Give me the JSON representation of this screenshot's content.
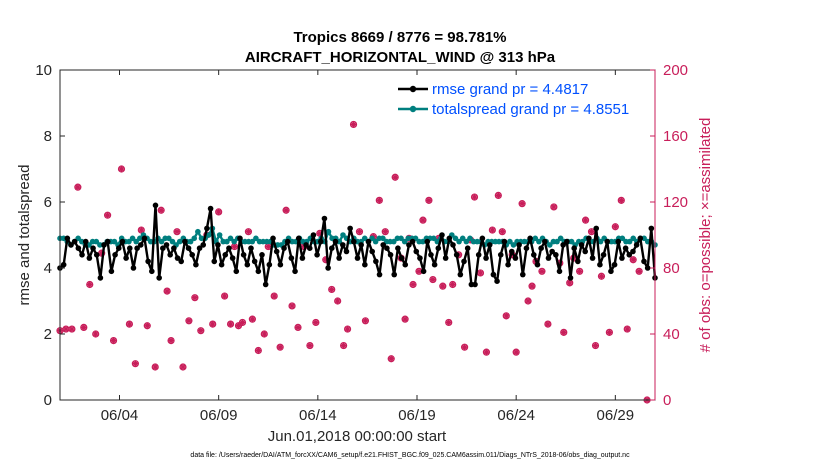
{
  "chart_data": {
    "type": "line",
    "title_line1": "Tropics 8669 / 8776 = 98.781%",
    "title_line2": "AIRCRAFT_HORIZONTAL_WIND @ 313 hPa",
    "xlabel": "Jun.01,2018 00:00:00 start",
    "ylabel_left": "rmse and totalspread",
    "ylabel_right": "# of obs: o=possible; ×=assimilated",
    "footer": "data file: /Users/raeder/DAI/ATM_forcXX/CAM6_setup/f.e21.FHIST_BGC.f09_025.CAM6assim.011/Diags_NTrS_2018-06/obs_diag_output.nc",
    "x_ticks": [
      {
        "day": 4,
        "label": "06/04"
      },
      {
        "day": 9,
        "label": "06/09"
      },
      {
        "day": 14,
        "label": "06/14"
      },
      {
        "day": 19,
        "label": "06/19"
      },
      {
        "day": 24,
        "label": "06/24"
      },
      {
        "day": 29,
        "label": "06/29"
      }
    ],
    "xlim": [
      1.0,
      31.0
    ],
    "ylim_left": [
      0,
      10
    ],
    "ylim_right": [
      0,
      200
    ],
    "yticks_left": [
      "0",
      "2",
      "4",
      "6",
      "8",
      "10"
    ],
    "yticks_right": [
      "0",
      "40",
      "80",
      "120",
      "160",
      "200"
    ],
    "colors": {
      "rmse": "#000000",
      "spread": "#007f7f",
      "obs": "#c81e5a",
      "legend_text": "#0050ff"
    },
    "series": [
      {
        "name": "rmse grand pr = 4.4817",
        "key": "rmse",
        "values": [
          4.0,
          4.1,
          4.9,
          4.7,
          4.8,
          4.6,
          4.4,
          4.8,
          4.3,
          4.6,
          4.4,
          3.7,
          4.7,
          4.8,
          3.9,
          4.4,
          4.6,
          4.8,
          4.3,
          4.6,
          4.0,
          4.6,
          4.7,
          4.9,
          4.2,
          3.9,
          5.9,
          3.7,
          4.6,
          4.7,
          4.4,
          4.6,
          4.3,
          4.2,
          4.8,
          4.6,
          4.4,
          4.1,
          4.6,
          4.7,
          5.2,
          5.8,
          4.2,
          4.7,
          4.1,
          4.4,
          4.6,
          4.3,
          3.9,
          4.9,
          4.4,
          4.1,
          4.6,
          4.2,
          3.9,
          4.4,
          3.5,
          4.1,
          4.9,
          4.5,
          4.1,
          4.6,
          4.8,
          4.3,
          3.9,
          4.9,
          4.3,
          4.7,
          4.6,
          5.0,
          4.4,
          4.8,
          5.5,
          4.0,
          4.6,
          4.8,
          4.3,
          4.7,
          4.5,
          5.2,
          4.8,
          4.3,
          4.7,
          4.1,
          4.8,
          4.5,
          4.2,
          3.8,
          4.7,
          4.6,
          4.4,
          3.8,
          4.6,
          4.3,
          4.1,
          4.7,
          4.8,
          4.5,
          4.3,
          3.9,
          4.8,
          4.4,
          4.1,
          4.6,
          5.0,
          4.3,
          4.9,
          4.7,
          4.4,
          3.8,
          4.2,
          4.6,
          3.5,
          3.5,
          4.4,
          4.9,
          4.3,
          4.7,
          3.8,
          3.6,
          4.4,
          4.8,
          4.1,
          4.5,
          4.3,
          4.7,
          3.8,
          4.6,
          4.9,
          4.4,
          4.1,
          4.6,
          4.8,
          4.3,
          4.5,
          4.4,
          3.9,
          4.7,
          4.8,
          3.7,
          4.6,
          4.2,
          4.7,
          4.5,
          4.9,
          4.3,
          5.2,
          4.1,
          4.4,
          4.8,
          3.9,
          4.1,
          4.8,
          4.3,
          4.6,
          4.4,
          4.5,
          4.7,
          4.9,
          4.2,
          4.0,
          5.2,
          3.7
        ]
      },
      {
        "name": "totalspread grand pr = 4.8551",
        "key": "spread",
        "values": [
          4.9,
          4.9,
          4.8,
          4.7,
          4.8,
          4.9,
          4.8,
          4.7,
          4.7,
          4.8,
          4.8,
          4.7,
          4.7,
          4.8,
          4.8,
          4.8,
          4.7,
          4.9,
          4.8,
          4.8,
          4.9,
          4.8,
          4.9,
          5.0,
          4.9,
          4.8,
          4.8,
          4.9,
          4.8,
          4.9,
          4.9,
          4.8,
          4.7,
          4.8,
          4.9,
          4.8,
          4.8,
          4.9,
          5.1,
          4.9,
          4.9,
          5.0,
          5.2,
          4.8,
          5.0,
          4.8,
          4.8,
          4.9,
          4.8,
          4.9,
          4.8,
          4.8,
          4.8,
          4.8,
          4.9,
          4.8,
          4.8,
          4.8,
          4.8,
          4.7,
          4.7,
          4.7,
          4.8,
          4.9,
          4.8,
          4.8,
          4.9,
          4.8,
          4.8,
          4.9,
          4.8,
          4.8,
          4.9,
          4.8,
          5.1,
          4.9,
          4.9,
          4.8,
          5.0,
          4.9,
          4.8,
          4.9,
          4.8,
          4.8,
          4.9,
          4.8,
          4.9,
          4.8,
          4.9,
          4.9,
          4.8,
          4.8,
          4.8,
          4.9,
          4.9,
          4.8,
          4.9,
          4.9,
          4.9,
          4.8,
          4.8,
          4.9,
          4.9,
          4.9,
          4.8,
          4.9,
          4.8,
          4.8,
          5.0,
          4.9,
          4.8,
          4.9,
          4.8,
          4.9,
          4.8,
          4.8,
          4.8,
          4.7,
          4.8,
          4.8,
          4.8,
          4.8,
          4.8,
          4.7,
          4.8,
          4.7,
          4.8,
          4.8,
          4.8,
          4.8,
          4.8,
          4.9,
          4.8,
          4.9,
          4.8,
          4.7,
          4.8,
          4.8,
          4.9,
          4.8,
          4.8,
          4.8,
          4.7,
          4.8,
          4.8,
          4.9,
          4.8,
          4.8,
          4.9,
          4.8,
          4.9,
          4.8,
          4.8,
          4.8,
          4.9,
          4.9,
          4.8,
          4.8,
          4.9,
          4.8,
          4.9,
          4.9,
          4.8,
          4.8,
          4.7
        ]
      }
    ],
    "obs_count": [
      [
        1.0,
        42
      ],
      [
        1.3,
        43
      ],
      [
        1.6,
        43
      ],
      [
        1.9,
        129
      ],
      [
        2.2,
        44
      ],
      [
        2.5,
        70
      ],
      [
        2.8,
        40
      ],
      [
        3.1,
        89
      ],
      [
        3.4,
        112
      ],
      [
        3.7,
        36
      ],
      [
        4.1,
        140
      ],
      [
        4.5,
        46
      ],
      [
        4.8,
        22
      ],
      [
        5.1,
        103
      ],
      [
        5.4,
        45
      ],
      [
        5.8,
        20
      ],
      [
        6.1,
        115
      ],
      [
        6.4,
        66
      ],
      [
        6.6,
        36
      ],
      [
        6.9,
        102
      ],
      [
        7.2,
        20
      ],
      [
        7.5,
        48
      ],
      [
        7.8,
        62
      ],
      [
        8.1,
        42
      ],
      [
        8.4,
        100
      ],
      [
        8.7,
        46
      ],
      [
        9.0,
        114
      ],
      [
        9.3,
        63
      ],
      [
        9.6,
        46
      ],
      [
        9.8,
        93
      ],
      [
        10.0,
        45
      ],
      [
        10.2,
        47
      ],
      [
        10.5,
        102
      ],
      [
        10.7,
        49
      ],
      [
        11.0,
        30
      ],
      [
        11.3,
        40
      ],
      [
        11.5,
        93
      ],
      [
        11.8,
        63
      ],
      [
        12.1,
        32
      ],
      [
        12.4,
        115
      ],
      [
        12.7,
        57
      ],
      [
        13.0,
        44
      ],
      [
        13.3,
        93
      ],
      [
        13.6,
        33
      ],
      [
        13.9,
        47
      ],
      [
        14.1,
        101
      ],
      [
        14.4,
        85
      ],
      [
        14.7,
        67
      ],
      [
        15.0,
        60
      ],
      [
        15.3,
        33
      ],
      [
        15.5,
        43
      ],
      [
        15.8,
        167
      ],
      [
        16.1,
        102
      ],
      [
        16.4,
        48
      ],
      [
        16.8,
        99
      ],
      [
        17.1,
        121
      ],
      [
        17.4,
        102
      ],
      [
        17.7,
        25
      ],
      [
        17.9,
        135
      ],
      [
        18.2,
        86
      ],
      [
        18.4,
        49
      ],
      [
        18.6,
        98
      ],
      [
        18.8,
        70
      ],
      [
        19.1,
        78
      ],
      [
        19.3,
        109
      ],
      [
        19.6,
        121
      ],
      [
        19.8,
        73
      ],
      [
        20.1,
        98
      ],
      [
        20.3,
        69
      ],
      [
        20.6,
        47
      ],
      [
        20.8,
        70
      ],
      [
        21.1,
        88
      ],
      [
        21.4,
        32
      ],
      [
        21.7,
        97
      ],
      [
        21.9,
        123
      ],
      [
        22.2,
        77
      ],
      [
        22.5,
        29
      ],
      [
        22.8,
        103
      ],
      [
        23.1,
        124
      ],
      [
        23.3,
        102
      ],
      [
        23.5,
        51
      ],
      [
        23.8,
        88
      ],
      [
        24.0,
        29
      ],
      [
        24.3,
        119
      ],
      [
        24.6,
        60
      ],
      [
        24.8,
        69
      ],
      [
        25.0,
        84
      ],
      [
        25.3,
        78
      ],
      [
        25.6,
        46
      ],
      [
        25.9,
        117
      ],
      [
        26.2,
        83
      ],
      [
        26.4,
        41
      ],
      [
        26.7,
        71
      ],
      [
        26.9,
        86
      ],
      [
        27.2,
        78
      ],
      [
        27.5,
        109
      ],
      [
        27.8,
        102
      ],
      [
        28.0,
        33
      ],
      [
        28.3,
        75
      ],
      [
        28.7,
        41
      ],
      [
        29.0,
        105
      ],
      [
        29.3,
        121
      ],
      [
        29.6,
        43
      ],
      [
        29.9,
        85
      ],
      [
        30.2,
        78
      ],
      [
        30.6,
        0
      ]
    ]
  }
}
